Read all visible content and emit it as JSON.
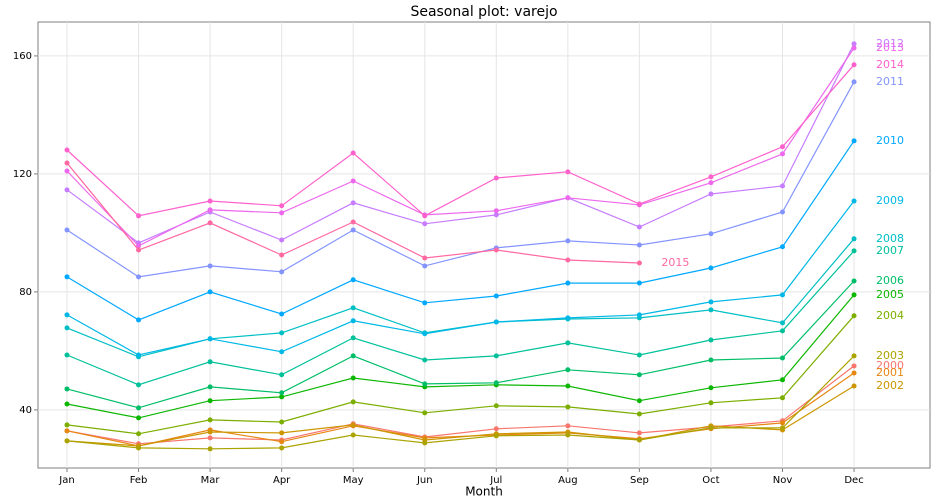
{
  "chart_data": {
    "type": "line",
    "title": "Seasonal plot: varejo",
    "x_label": "Month",
    "categories": [
      "Jan",
      "Feb",
      "Mar",
      "Apr",
      "May",
      "Jun",
      "Jul",
      "Aug",
      "Sep",
      "Oct",
      "Nov",
      "Dec"
    ],
    "ylim": [
      20.3,
      171.5
    ],
    "yticks": [
      40,
      80,
      120,
      160
    ],
    "grid": true,
    "series": [
      {
        "name": "2000",
        "color": "#F8766D",
        "values": [
          32.9,
          28.5,
          30.5,
          29.8,
          35.3,
          30.8,
          33.6,
          34.6,
          32.2,
          34.2,
          36.3,
          54.9
        ]
      },
      {
        "name": "2001",
        "color": "#E68613",
        "values": [
          32.9,
          27.8,
          33.2,
          29.2,
          34.6,
          30.5,
          31.5,
          32.2,
          30.2,
          33.6,
          35.6,
          52.5
        ]
      },
      {
        "name": "2002",
        "color": "#CD9600",
        "values": [
          29.5,
          27.8,
          32.5,
          32.2,
          34.9,
          29.8,
          31.9,
          32.5,
          29.8,
          34.6,
          33.2,
          48.1
        ]
      },
      {
        "name": "2003",
        "color": "#ABA300",
        "values": [
          29.5,
          27.1,
          26.8,
          27.1,
          31.5,
          28.8,
          31.2,
          31.5,
          29.8,
          33.9,
          33.9,
          58.3
        ]
      },
      {
        "name": "2004",
        "color": "#7CAE00",
        "values": [
          34.9,
          31.9,
          36.6,
          35.9,
          42.7,
          39.0,
          41.4,
          41.0,
          38.6,
          42.4,
          44.1,
          71.9
        ]
      },
      {
        "name": "2005",
        "color": "#0CB702",
        "values": [
          42.0,
          37.3,
          43.1,
          44.4,
          50.8,
          47.8,
          48.5,
          48.1,
          43.1,
          47.5,
          50.2,
          79.0
        ]
      },
      {
        "name": "2006",
        "color": "#00BE67",
        "values": [
          47.1,
          40.7,
          47.8,
          45.8,
          58.3,
          48.8,
          49.2,
          53.6,
          51.9,
          56.9,
          57.6,
          83.7
        ]
      },
      {
        "name": "2007",
        "color": "#00C19A",
        "values": [
          58.6,
          48.5,
          56.3,
          51.9,
          64.4,
          56.9,
          58.3,
          62.7,
          58.6,
          63.7,
          66.8,
          93.9
        ]
      },
      {
        "name": "2008",
        "color": "#00BFC4",
        "values": [
          67.8,
          58.0,
          64.1,
          66.1,
          74.6,
          66.1,
          69.8,
          70.8,
          71.2,
          73.9,
          69.5,
          98.0
        ]
      },
      {
        "name": "2009",
        "color": "#00B8E7",
        "values": [
          72.2,
          58.6,
          64.1,
          59.7,
          70.2,
          65.8,
          69.8,
          71.2,
          72.2,
          76.6,
          79.0,
          110.8
        ]
      },
      {
        "name": "2010",
        "color": "#00A9FF",
        "values": [
          85.1,
          70.5,
          80.0,
          72.5,
          84.1,
          76.3,
          78.6,
          83.0,
          83.0,
          88.1,
          95.3,
          131.2
        ]
      },
      {
        "name": "2011",
        "color": "#8494FF",
        "values": [
          101.0,
          85.1,
          88.8,
          86.8,
          101.0,
          88.8,
          94.9,
          97.3,
          95.9,
          99.7,
          107.1,
          151.2
        ]
      },
      {
        "name": "2012",
        "color": "#C77CFF",
        "values": [
          114.6,
          96.6,
          107.1,
          97.6,
          110.2,
          103.1,
          106.1,
          111.9,
          102.0,
          113.2,
          115.9,
          164.1
        ]
      },
      {
        "name": "2013",
        "color": "#ED68ED",
        "values": [
          121.0,
          95.6,
          107.8,
          106.8,
          117.6,
          106.1,
          107.5,
          111.9,
          109.5,
          117.0,
          126.8,
          162.7
        ]
      },
      {
        "name": "2014",
        "color": "#FF61CC",
        "values": [
          128.1,
          105.8,
          110.8,
          109.2,
          127.1,
          105.8,
          118.6,
          120.7,
          109.8,
          119.0,
          129.2,
          157.0
        ]
      },
      {
        "name": "2015",
        "color": "#FF68A1",
        "values": [
          123.7,
          94.2,
          103.4,
          92.5,
          103.7,
          91.5,
          94.2,
          90.8,
          89.8,
          null,
          null,
          null
        ]
      }
    ]
  }
}
